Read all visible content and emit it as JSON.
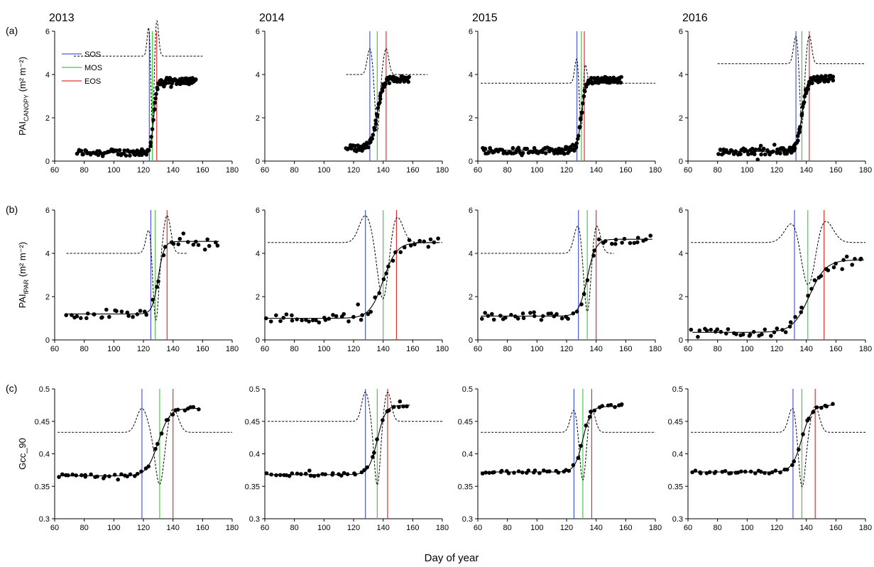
{
  "chart_data": {
    "type": "scatter",
    "xlabel": "Day of year",
    "years": [
      "2013",
      "2014",
      "2015",
      "2016"
    ],
    "xlim": [
      60,
      180
    ],
    "xticks": [
      60,
      80,
      100,
      120,
      140,
      160,
      180
    ],
    "legend": {
      "placement": "top-left of panel (a) 2013",
      "entries": [
        {
          "label": "SOS",
          "color": "#4a5bd6"
        },
        {
          "label": "MOS",
          "color": "#44cc44"
        },
        {
          "label": "EOS",
          "color": "#e03030"
        }
      ]
    },
    "rows": [
      {
        "label": "(a)",
        "ylabel_main": "PAI",
        "ylabel_sub": "CANOPY",
        "ylabel_unit": " (m² m⁻²)",
        "ylim": [
          0,
          6
        ],
        "yticks": [
          "0",
          "2",
          "4",
          "6"
        ],
        "panels": [
          {
            "year": "2013",
            "sos": 124,
            "mos": 126,
            "eos": 129,
            "baseline": 0.4,
            "max": 3.7,
            "midpoint": 127,
            "steepness": 0.9,
            "xstart": 75,
            "xend": 156,
            "curve_baseline": 4.85,
            "curve_amp": 1.7,
            "curve_width": 1.8,
            "curve_x1": 73,
            "curve_x2": 160
          },
          {
            "year": "2014",
            "sos": 131,
            "mos": 136,
            "eos": 142,
            "baseline": 0.6,
            "max": 3.8,
            "midpoint": 136,
            "steepness": 0.5,
            "xstart": 115,
            "xend": 158,
            "curve_baseline": 4.0,
            "curve_amp": 1.2,
            "curve_width": 2.5,
            "curve_x1": 115,
            "curve_x2": 170
          },
          {
            "year": "2015",
            "sos": 127,
            "mos": 130,
            "eos": 132,
            "baseline": 0.5,
            "max": 3.75,
            "midpoint": 130,
            "steepness": 0.7,
            "xstart": 63,
            "xend": 157,
            "curve_baseline": 3.6,
            "curve_amp": 1.2,
            "curve_width": 2.0,
            "curve_x1": 62,
            "curve_x2": 180
          },
          {
            "year": "2016",
            "sos": 133,
            "mos": 137,
            "eos": 142,
            "baseline": 0.45,
            "max": 3.8,
            "midpoint": 137,
            "steepness": 0.55,
            "xstart": 81,
            "xend": 159,
            "curve_baseline": 4.5,
            "curve_amp": 1.3,
            "curve_width": 2.3,
            "curve_x1": 80,
            "curve_x2": 180
          }
        ]
      },
      {
        "label": "(b)",
        "ylabel_main": "PAI",
        "ylabel_sub": "fPAR",
        "ylabel_unit": " (m² m⁻²)",
        "ylim": [
          0,
          6
        ],
        "yticks": [
          "0",
          "2",
          "4",
          "6"
        ],
        "panels": [
          {
            "year": "2013",
            "sos": 125,
            "mos": 128,
            "eos": 136,
            "baseline": 1.2,
            "max": 4.55,
            "midpoint": 130,
            "steepness": 0.5,
            "xstart": 68,
            "xend": 171,
            "curve_baseline": 4.0,
            "curve_amp": 1.75,
            "curve_width": 3.5,
            "curve_x1": 68,
            "curve_x2": 150
          },
          {
            "year": "2014",
            "sos": 128,
            "mos": 140,
            "eos": 149,
            "baseline": 1.0,
            "max": 4.5,
            "midpoint": 140,
            "steepness": 0.22,
            "xstart": 62,
            "xend": 178,
            "curve_baseline": 4.5,
            "curve_amp": 1.25,
            "curve_width": 6.0,
            "curve_x1": 62,
            "curve_x2": 180
          },
          {
            "year": "2015",
            "sos": 128,
            "mos": 134,
            "eos": 140,
            "baseline": 1.1,
            "max": 4.65,
            "midpoint": 134,
            "steepness": 0.35,
            "xstart": 62,
            "xend": 178,
            "curve_baseline": 4.0,
            "curve_amp": 1.35,
            "curve_width": 4.0,
            "curve_x1": 62,
            "curve_x2": 152
          },
          {
            "year": "2016",
            "sos": 132,
            "mos": 141,
            "eos": 152,
            "baseline": 0.35,
            "max": 3.7,
            "midpoint": 142,
            "steepness": 0.18,
            "xstart": 63,
            "xend": 179,
            "curve_baseline": 4.5,
            "curve_amp": 1.1,
            "curve_width": 8.0,
            "curve_x1": 62,
            "curve_x2": 180
          }
        ]
      },
      {
        "label": "(c)",
        "ylabel_main": "Gcc_90",
        "ylabel_sub": "",
        "ylabel_unit": "",
        "ylim": [
          0.3,
          0.5
        ],
        "yticks": [
          "0.3",
          "0.35",
          "0.4",
          "0.45",
          "0.5"
        ],
        "panels": [
          {
            "year": "2013",
            "sos": 119,
            "mos": 131,
            "eos": 140,
            "baseline": 0.366,
            "max": 0.47,
            "midpoint": 130,
            "steepness": 0.26,
            "xstart": 62,
            "xend": 158,
            "curve_baseline": 0.433,
            "curve_amp": 0.037,
            "curve_width": 5.0,
            "curve_x1": 62,
            "curve_x2": 180
          },
          {
            "year": "2014",
            "sos": 128,
            "mos": 136,
            "eos": 143,
            "baseline": 0.368,
            "max": 0.475,
            "midpoint": 136,
            "steepness": 0.35,
            "xstart": 62,
            "xend": 158,
            "curve_baseline": 0.45,
            "curve_amp": 0.045,
            "curve_width": 3.5,
            "curve_x1": 62,
            "curve_x2": 180
          },
          {
            "year": "2015",
            "sos": 125,
            "mos": 131,
            "eos": 137,
            "baseline": 0.372,
            "max": 0.473,
            "midpoint": 131,
            "steepness": 0.37,
            "xstart": 62,
            "xend": 158,
            "curve_baseline": 0.433,
            "curve_amp": 0.035,
            "curve_width": 3.5,
            "curve_x1": 62,
            "curve_x2": 180
          },
          {
            "year": "2016",
            "sos": 131,
            "mos": 137,
            "eos": 146,
            "baseline": 0.372,
            "max": 0.475,
            "midpoint": 137,
            "steepness": 0.3,
            "xstart": 62,
            "xend": 159,
            "curve_baseline": 0.433,
            "curve_amp": 0.04,
            "curve_width": 4.0,
            "curve_x1": 62,
            "curve_x2": 180
          }
        ]
      }
    ]
  }
}
